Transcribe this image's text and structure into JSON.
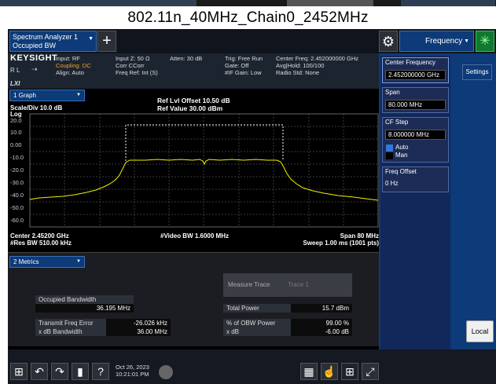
{
  "caption": "802.11n_40MHz_Chain0_2452MHz",
  "tab": {
    "title": "Spectrum Analyzer 1",
    "mode": "Occupied BW"
  },
  "menu": {
    "selected": "Frequency"
  },
  "info": {
    "brand": "KEYSIGHT",
    "input": "Input: RF",
    "coupling": "Coupling: DC",
    "align": "Align: Auto",
    "rl": "R L",
    "inputz": "Input Z: 50 Ω",
    "corr": "Corr CCorr",
    "freqref": "Freq Ref: Int (S)",
    "atten": "Atten: 30 dB",
    "trig": "Trig: Free Run",
    "gate": "Gate: Off",
    "ifgain": "#IF Gain: Low",
    "centerfreq": "Center Freq: 2.452000000 GHz",
    "avghold": "Avg|Hold: 100/100",
    "radiostd": "Radio Std: None",
    "lxi": "LXI"
  },
  "graph": {
    "selector": "1 Graph",
    "scale_div": "Scale/Div 10.0 dB",
    "ref_offset": "Ref Lvl Offset 10.50 dB",
    "ref_value": "Ref Value 30.00 dBm",
    "log_label": "Log",
    "y_ticks": [
      "20.0",
      "10.0",
      "0.00",
      "-10.0",
      "-20.0",
      "-30.0",
      "-40.0",
      "-50.0",
      "-60.0"
    ],
    "center": "Center 2.45200 GHz",
    "res_bw": "#Res BW 510.00 kHz",
    "video_bw": "#Video BW 1.6000 MHz",
    "span": "Span 80 MHz",
    "sweep": "Sweep 1.00 ms (1001 pts)"
  },
  "metrics": {
    "selector": "2 Metrics",
    "occupied_bw_label": "Occupied Bandwidth",
    "occupied_bw_value": "36.195 MHz",
    "tx_freq_err_label": "Transmit Freq Error",
    "tx_freq_err_value": "-26.026 kHz",
    "xdb_bw_label": "x dB Bandwidth",
    "xdb_bw_value": "36.00 MHz",
    "measure_trace_label": "Measure Trace",
    "measure_trace_value": "Trace 1",
    "total_power_label": "Total Power",
    "total_power_value": "15.7 dBm",
    "pct_obw_label": "% of OBW Power",
    "pct_obw_value": "99.00 %",
    "xdb_label": "x dB",
    "xdb_value": "-6.00 dB"
  },
  "panel": {
    "center_freq_label": "Center Frequency",
    "center_freq_value": "2.452000000 GHz",
    "settings": "Settings",
    "span_label": "Span",
    "span_value": "80.000 MHz",
    "cf_step_label": "CF Step",
    "cf_step_value": "8.000000 MHz",
    "auto": "Auto",
    "man": "Man",
    "freq_offset_label": "Freq Offset",
    "freq_offset_value": "0 Hz",
    "local": "Local"
  },
  "taskbar": {
    "date": "Oct 26, 2023",
    "time": "10:21:01 PM"
  },
  "colors": {
    "trace": "#f2f200",
    "panel": "#0d3a78",
    "accent_orange": "#f0a030"
  }
}
